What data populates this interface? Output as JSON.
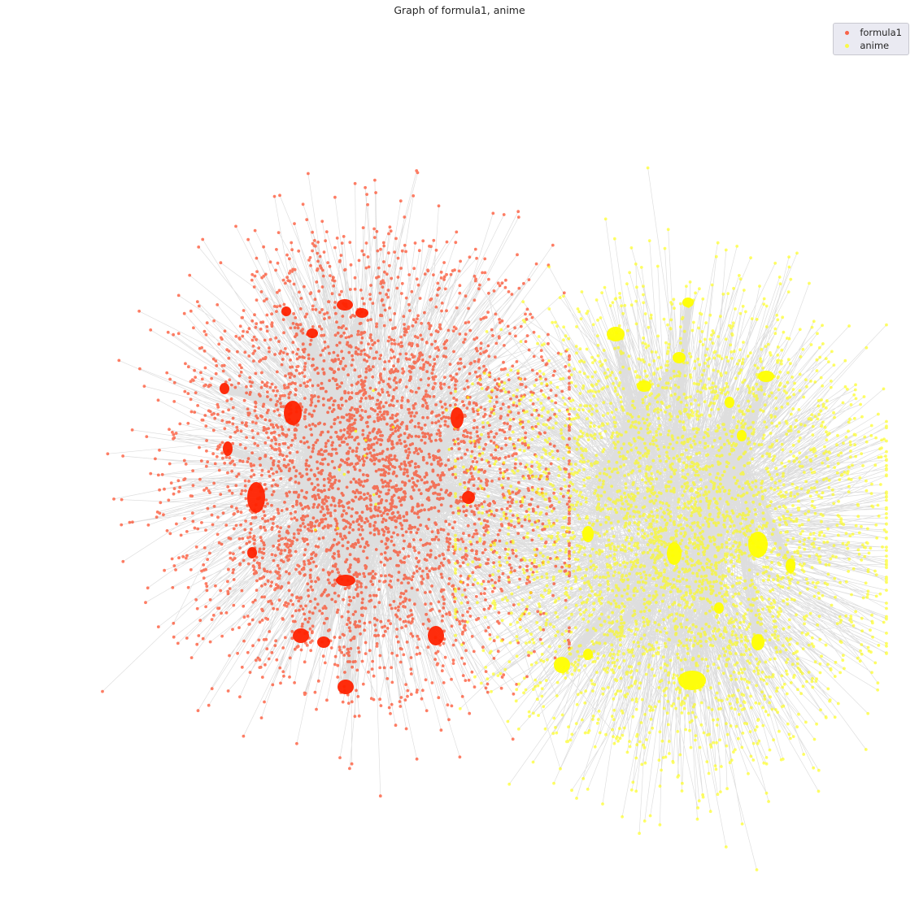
{
  "chart_data": {
    "type": "scatter",
    "subtype": "network-graph",
    "title": "Graph of formula1, anime",
    "grid": false,
    "axes_visible": false,
    "legend_placement": "top-right",
    "edge_color": "#000000",
    "series": [
      {
        "name": "formula1",
        "color": "#ff2a00",
        "hub_color": "#ff2200"
      },
      {
        "name": "anime",
        "color": "#ffff00",
        "hub_color": "#ffff00"
      }
    ]
  }
}
